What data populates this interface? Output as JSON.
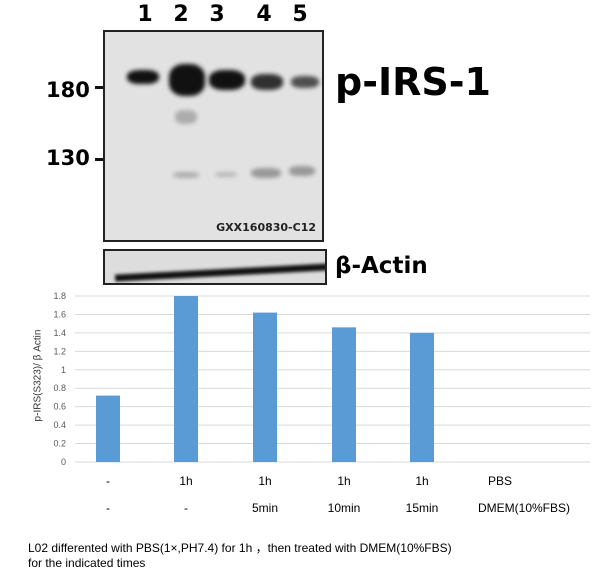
{
  "blot": {
    "lanes": [
      "1",
      "2",
      "3",
      "4",
      "5"
    ],
    "mw_markers": [
      "180",
      "130"
    ],
    "main_label": "p-IRS-1",
    "sample_id": "GXX160830-C12",
    "loading_label": "β-Actin"
  },
  "chart_data": {
    "type": "bar",
    "ylabel": "p-IRS(S323)/ β Actin",
    "ylim": [
      0,
      1.8
    ],
    "yticks": [
      "0",
      "0.2",
      "0.4",
      "0.6",
      "0.8",
      "1",
      "1.2",
      "1.4",
      "1.6",
      "1.8"
    ],
    "grid": true,
    "color": "#5b9bd5",
    "categories": [
      "1",
      "2",
      "3",
      "4",
      "5"
    ],
    "values": [
      0.72,
      1.8,
      1.62,
      1.46,
      1.4
    ],
    "x_rows": [
      {
        "name": "PBS",
        "labels": [
          "-",
          "1h",
          "1h",
          "1h",
          "1h"
        ]
      },
      {
        "name": "DMEM(10%FBS)",
        "labels": [
          "-",
          "-",
          "5min",
          "10min",
          "15min"
        ]
      }
    ]
  },
  "caption": {
    "line1": "L02 differented with PBS(1×,PH7.4) for 1h ，then treated with DMEM(10%FBS)",
    "line2": "for the indicated times"
  }
}
